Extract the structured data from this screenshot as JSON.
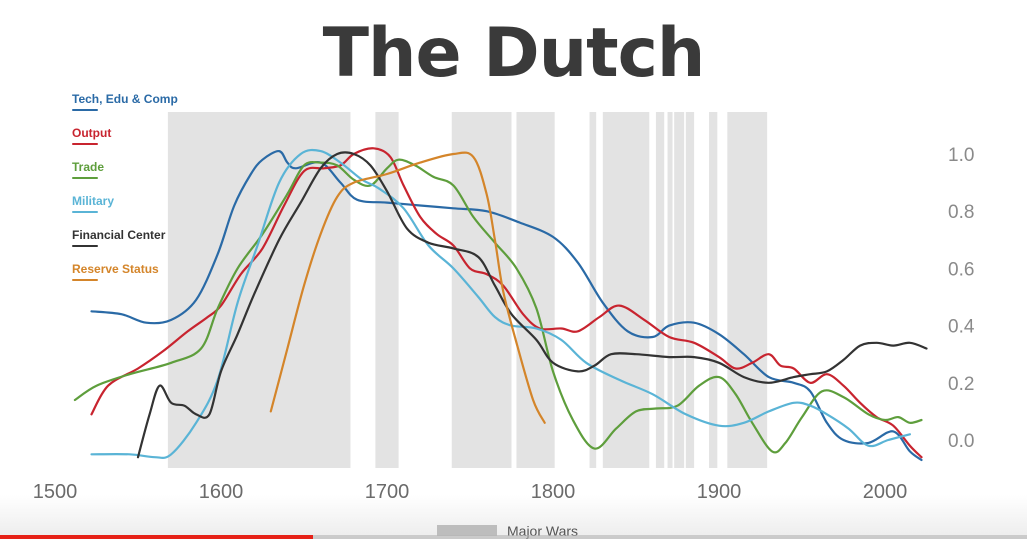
{
  "title": "The Dutch",
  "legend": [
    {
      "label": "Tech, Edu & Comp",
      "color": "#2a6aa6"
    },
    {
      "label": "Output",
      "color": "#c8242f"
    },
    {
      "label": "Trade",
      "color": "#5e9e3c"
    },
    {
      "label": "Military",
      "color": "#5ab4d6"
    },
    {
      "label": "Financial Center",
      "color": "#333333"
    },
    {
      "label": "Reserve Status",
      "color": "#d4852a"
    }
  ],
  "wars_label": "Major Wars",
  "wars_color": "#e3e3e3",
  "video_progress": 0.305,
  "chart_data": {
    "type": "line",
    "title": "The Dutch",
    "xlabel": "",
    "ylabel": "",
    "xlim": [
      1490,
      2030
    ],
    "ylim": [
      -0.08,
      1.15
    ],
    "x_ticks": [
      1500,
      1600,
      1700,
      1800,
      1900,
      2000
    ],
    "x_tick_labels": [
      "1500",
      "1600",
      "1700",
      "1800",
      "1900",
      "2000"
    ],
    "y_ticks": [
      0.0,
      0.2,
      0.4,
      0.6,
      0.8,
      1.0
    ],
    "y_tick_labels": [
      "0.0",
      "0.2",
      "0.4",
      "0.6",
      "0.8",
      "1.0"
    ],
    "y_axis_side": "right",
    "legend_placement": "top-left",
    "grid": false,
    "war_periods": [
      [
        1568,
        1678
      ],
      [
        1693,
        1707
      ],
      [
        1739,
        1775
      ],
      [
        1778,
        1801
      ],
      [
        1822,
        1826
      ],
      [
        1830,
        1858
      ],
      [
        1862,
        1867
      ],
      [
        1869,
        1872
      ],
      [
        1873,
        1879
      ],
      [
        1880,
        1885
      ],
      [
        1894,
        1899
      ],
      [
        1905,
        1929
      ]
    ],
    "series": [
      {
        "name": "Tech, Edu & Comp",
        "color": "#2a6aa6",
        "points": [
          [
            1522,
            0.45
          ],
          [
            1540,
            0.44
          ],
          [
            1555,
            0.41
          ],
          [
            1570,
            0.42
          ],
          [
            1585,
            0.49
          ],
          [
            1598,
            0.65
          ],
          [
            1608,
            0.82
          ],
          [
            1618,
            0.93
          ],
          [
            1625,
            0.98
          ],
          [
            1635,
            1.01
          ],
          [
            1640,
            0.97
          ],
          [
            1645,
            0.95
          ],
          [
            1660,
            0.97
          ],
          [
            1672,
            0.9
          ],
          [
            1682,
            0.84
          ],
          [
            1700,
            0.83
          ],
          [
            1720,
            0.82
          ],
          [
            1740,
            0.81
          ],
          [
            1760,
            0.8
          ],
          [
            1780,
            0.76
          ],
          [
            1800,
            0.71
          ],
          [
            1815,
            0.62
          ],
          [
            1830,
            0.48
          ],
          [
            1845,
            0.38
          ],
          [
            1860,
            0.36
          ],
          [
            1870,
            0.4
          ],
          [
            1885,
            0.41
          ],
          [
            1900,
            0.37
          ],
          [
            1915,
            0.3
          ],
          [
            1930,
            0.22
          ],
          [
            1945,
            0.2
          ],
          [
            1955,
            0.17
          ],
          [
            1965,
            0.06
          ],
          [
            1975,
            0.0
          ],
          [
            1990,
            -0.01
          ],
          [
            2005,
            0.03
          ],
          [
            2015,
            -0.04
          ],
          [
            2022,
            -0.07
          ]
        ]
      },
      {
        "name": "Output",
        "color": "#c8242f",
        "points": [
          [
            1522,
            0.09
          ],
          [
            1532,
            0.19
          ],
          [
            1550,
            0.25
          ],
          [
            1565,
            0.31
          ],
          [
            1580,
            0.38
          ],
          [
            1592,
            0.43
          ],
          [
            1600,
            0.47
          ],
          [
            1612,
            0.58
          ],
          [
            1625,
            0.67
          ],
          [
            1638,
            0.82
          ],
          [
            1650,
            0.94
          ],
          [
            1662,
            0.95
          ],
          [
            1672,
            0.96
          ],
          [
            1680,
            1.0
          ],
          [
            1692,
            1.02
          ],
          [
            1702,
            0.99
          ],
          [
            1710,
            0.89
          ],
          [
            1720,
            0.78
          ],
          [
            1730,
            0.72
          ],
          [
            1740,
            0.68
          ],
          [
            1750,
            0.6
          ],
          [
            1760,
            0.58
          ],
          [
            1770,
            0.54
          ],
          [
            1782,
            0.44
          ],
          [
            1792,
            0.39
          ],
          [
            1805,
            0.39
          ],
          [
            1815,
            0.38
          ],
          [
            1828,
            0.43
          ],
          [
            1840,
            0.47
          ],
          [
            1855,
            0.42
          ],
          [
            1870,
            0.36
          ],
          [
            1885,
            0.34
          ],
          [
            1900,
            0.29
          ],
          [
            1910,
            0.25
          ],
          [
            1920,
            0.27
          ],
          [
            1930,
            0.3
          ],
          [
            1937,
            0.26
          ],
          [
            1945,
            0.25
          ],
          [
            1955,
            0.2
          ],
          [
            1965,
            0.23
          ],
          [
            1975,
            0.19
          ],
          [
            1985,
            0.13
          ],
          [
            1995,
            0.08
          ],
          [
            2005,
            0.05
          ],
          [
            2015,
            -0.02
          ],
          [
            2022,
            -0.06
          ]
        ]
      },
      {
        "name": "Trade",
        "color": "#5e9e3c",
        "points": [
          [
            1512,
            0.14
          ],
          [
            1525,
            0.19
          ],
          [
            1545,
            0.23
          ],
          [
            1570,
            0.27
          ],
          [
            1588,
            0.32
          ],
          [
            1598,
            0.46
          ],
          [
            1610,
            0.6
          ],
          [
            1625,
            0.72
          ],
          [
            1640,
            0.86
          ],
          [
            1650,
            0.96
          ],
          [
            1660,
            0.97
          ],
          [
            1670,
            0.96
          ],
          [
            1680,
            0.91
          ],
          [
            1690,
            0.89
          ],
          [
            1700,
            0.95
          ],
          [
            1707,
            0.98
          ],
          [
            1717,
            0.96
          ],
          [
            1728,
            0.92
          ],
          [
            1740,
            0.89
          ],
          [
            1752,
            0.78
          ],
          [
            1765,
            0.69
          ],
          [
            1778,
            0.6
          ],
          [
            1790,
            0.46
          ],
          [
            1800,
            0.24
          ],
          [
            1812,
            0.07
          ],
          [
            1825,
            -0.03
          ],
          [
            1838,
            0.04
          ],
          [
            1850,
            0.1
          ],
          [
            1862,
            0.11
          ],
          [
            1875,
            0.12
          ],
          [
            1888,
            0.19
          ],
          [
            1900,
            0.22
          ],
          [
            1910,
            0.16
          ],
          [
            1920,
            0.06
          ],
          [
            1932,
            -0.04
          ],
          [
            1940,
            -0.01
          ],
          [
            1950,
            0.08
          ],
          [
            1962,
            0.17
          ],
          [
            1975,
            0.15
          ],
          [
            1990,
            0.09
          ],
          [
            2000,
            0.07
          ],
          [
            2008,
            0.08
          ],
          [
            2015,
            0.06
          ],
          [
            2022,
            0.07
          ]
        ]
      },
      {
        "name": "Military",
        "color": "#5ab4d6",
        "points": [
          [
            1522,
            -0.05
          ],
          [
            1545,
            -0.05
          ],
          [
            1560,
            -0.06
          ],
          [
            1570,
            -0.05
          ],
          [
            1585,
            0.06
          ],
          [
            1598,
            0.21
          ],
          [
            1610,
            0.48
          ],
          [
            1622,
            0.68
          ],
          [
            1635,
            0.9
          ],
          [
            1648,
            1.0
          ],
          [
            1660,
            1.01
          ],
          [
            1672,
            0.97
          ],
          [
            1685,
            0.91
          ],
          [
            1695,
            0.88
          ],
          [
            1710,
            0.81
          ],
          [
            1725,
            0.68
          ],
          [
            1740,
            0.6
          ],
          [
            1755,
            0.5
          ],
          [
            1765,
            0.43
          ],
          [
            1775,
            0.4
          ],
          [
            1790,
            0.39
          ],
          [
            1805,
            0.35
          ],
          [
            1820,
            0.27
          ],
          [
            1840,
            0.21
          ],
          [
            1860,
            0.16
          ],
          [
            1880,
            0.09
          ],
          [
            1900,
            0.05
          ],
          [
            1915,
            0.06
          ],
          [
            1930,
            0.1
          ],
          [
            1945,
            0.13
          ],
          [
            1955,
            0.12
          ],
          [
            1965,
            0.09
          ],
          [
            1978,
            0.04
          ],
          [
            1990,
            -0.02
          ],
          [
            2002,
            0.0
          ],
          [
            2015,
            0.02
          ]
        ]
      },
      {
        "name": "Financial Center",
        "color": "#333333",
        "points": [
          [
            1550,
            -0.06
          ],
          [
            1557,
            0.09
          ],
          [
            1563,
            0.19
          ],
          [
            1570,
            0.13
          ],
          [
            1578,
            0.12
          ],
          [
            1585,
            0.09
          ],
          [
            1593,
            0.09
          ],
          [
            1600,
            0.24
          ],
          [
            1610,
            0.37
          ],
          [
            1620,
            0.51
          ],
          [
            1635,
            0.7
          ],
          [
            1648,
            0.83
          ],
          [
            1660,
            0.95
          ],
          [
            1670,
            1.0
          ],
          [
            1680,
            1.0
          ],
          [
            1690,
            0.96
          ],
          [
            1700,
            0.87
          ],
          [
            1712,
            0.74
          ],
          [
            1725,
            0.69
          ],
          [
            1740,
            0.67
          ],
          [
            1755,
            0.64
          ],
          [
            1765,
            0.54
          ],
          [
            1775,
            0.44
          ],
          [
            1790,
            0.35
          ],
          [
            1800,
            0.27
          ],
          [
            1815,
            0.24
          ],
          [
            1825,
            0.26
          ],
          [
            1835,
            0.3
          ],
          [
            1850,
            0.3
          ],
          [
            1870,
            0.29
          ],
          [
            1885,
            0.29
          ],
          [
            1900,
            0.27
          ],
          [
            1915,
            0.22
          ],
          [
            1930,
            0.2
          ],
          [
            1945,
            0.22
          ],
          [
            1955,
            0.23
          ],
          [
            1965,
            0.24
          ],
          [
            1975,
            0.28
          ],
          [
            1985,
            0.33
          ],
          [
            1995,
            0.34
          ],
          [
            2005,
            0.33
          ],
          [
            2015,
            0.34
          ],
          [
            2025,
            0.32
          ]
        ]
      },
      {
        "name": "Reserve Status",
        "color": "#d4852a",
        "points": [
          [
            1630,
            0.1
          ],
          [
            1640,
            0.32
          ],
          [
            1650,
            0.54
          ],
          [
            1660,
            0.72
          ],
          [
            1670,
            0.85
          ],
          [
            1680,
            0.9
          ],
          [
            1700,
            0.93
          ],
          [
            1720,
            0.97
          ],
          [
            1740,
            1.0
          ],
          [
            1752,
            0.99
          ],
          [
            1760,
            0.86
          ],
          [
            1765,
            0.7
          ],
          [
            1770,
            0.52
          ],
          [
            1778,
            0.34
          ],
          [
            1788,
            0.14
          ],
          [
            1795,
            0.06
          ]
        ]
      }
    ]
  }
}
